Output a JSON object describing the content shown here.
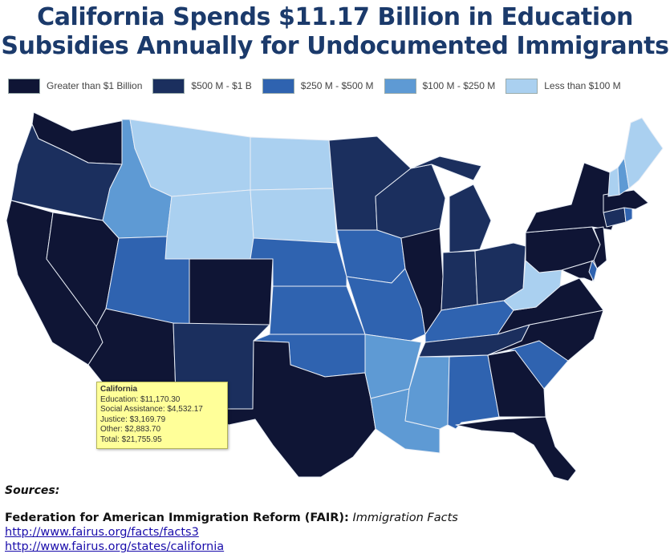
{
  "title": {
    "line1": "California Spends $11.17 Billion in Education",
    "line2": "Subsidies Annually for Undocumented Immigrants"
  },
  "legend": [
    {
      "label": "Greater than $1 Billion",
      "color": "#0f1535"
    },
    {
      "label": "$500 M - $1 B",
      "color": "#1b2f5e"
    },
    {
      "label": "$250 M - $500 M",
      "color": "#2f63b0"
    },
    {
      "label": "$100 M - $250 M",
      "color": "#5e9ad4"
    },
    {
      "label": "Less than $100 M",
      "color": "#aad0f0"
    }
  ],
  "states": {
    "WA": "Greater than $1 Billion",
    "OR": "$500 M - $1 B",
    "CA": "Greater than $1 Billion",
    "NV": "Greater than $1 Billion",
    "ID": "$100 M - $250 M",
    "MT": "Less than $100 M",
    "WY": "Less than $100 M",
    "UT": "$250 M - $500 M",
    "CO": "Greater than $1 Billion",
    "AZ": "Greater than $1 Billion",
    "NM": "$500 M - $1 B",
    "ND": "Less than $100 M",
    "SD": "Less than $100 M",
    "NE": "$250 M - $500 M",
    "KS": "$250 M - $500 M",
    "OK": "$250 M - $500 M",
    "TX": "Greater than $1 Billion",
    "MN": "$500 M - $1 B",
    "IA": "$250 M - $500 M",
    "MO": "$250 M - $500 M",
    "AR": "$100 M - $250 M",
    "LA": "$100 M - $250 M",
    "WI": "$500 M - $1 B",
    "IL": "Greater than $1 Billion",
    "MI": "$500 M - $1 B",
    "IN": "$500 M - $1 B",
    "OH": "$500 M - $1 B",
    "KY": "$250 M - $500 M",
    "TN": "$500 M - $1 B",
    "MS": "$100 M - $250 M",
    "AL": "$250 M - $500 M",
    "GA": "Greater than $1 Billion",
    "FL": "Greater than $1 Billion",
    "SC": "$250 M - $500 M",
    "NC": "Greater than $1 Billion",
    "VA": "Greater than $1 Billion",
    "WV": "Less than $100 M",
    "PA": "Greater than $1 Billion",
    "NY": "Greater than $1 Billion",
    "NJ": "Greater than $1 Billion",
    "MD": "Greater than $1 Billion",
    "DE": "$250 M - $500 M",
    "CT": "$500 M - $1 B",
    "RI": "$250 M - $500 M",
    "MA": "Greater than $1 Billion",
    "VT": "Less than $100 M",
    "NH": "$100 M - $250 M",
    "ME": "Less than $100 M"
  },
  "tooltip": {
    "title": "California",
    "lines": [
      "Education: $11,170.30",
      "Social Assistance: $4,532.17",
      "Justice: $3,169.79",
      "Other: $2,883.70",
      "Total: $21,755.95"
    ]
  },
  "sources": {
    "heading": "Sources:",
    "org": "Federation for American Immigration Reform (FAIR):",
    "publication": "Immigration Facts",
    "links": [
      "http://www.fairus.org/facts/facts3",
      "http://www.fairus.org/states/california"
    ]
  }
}
